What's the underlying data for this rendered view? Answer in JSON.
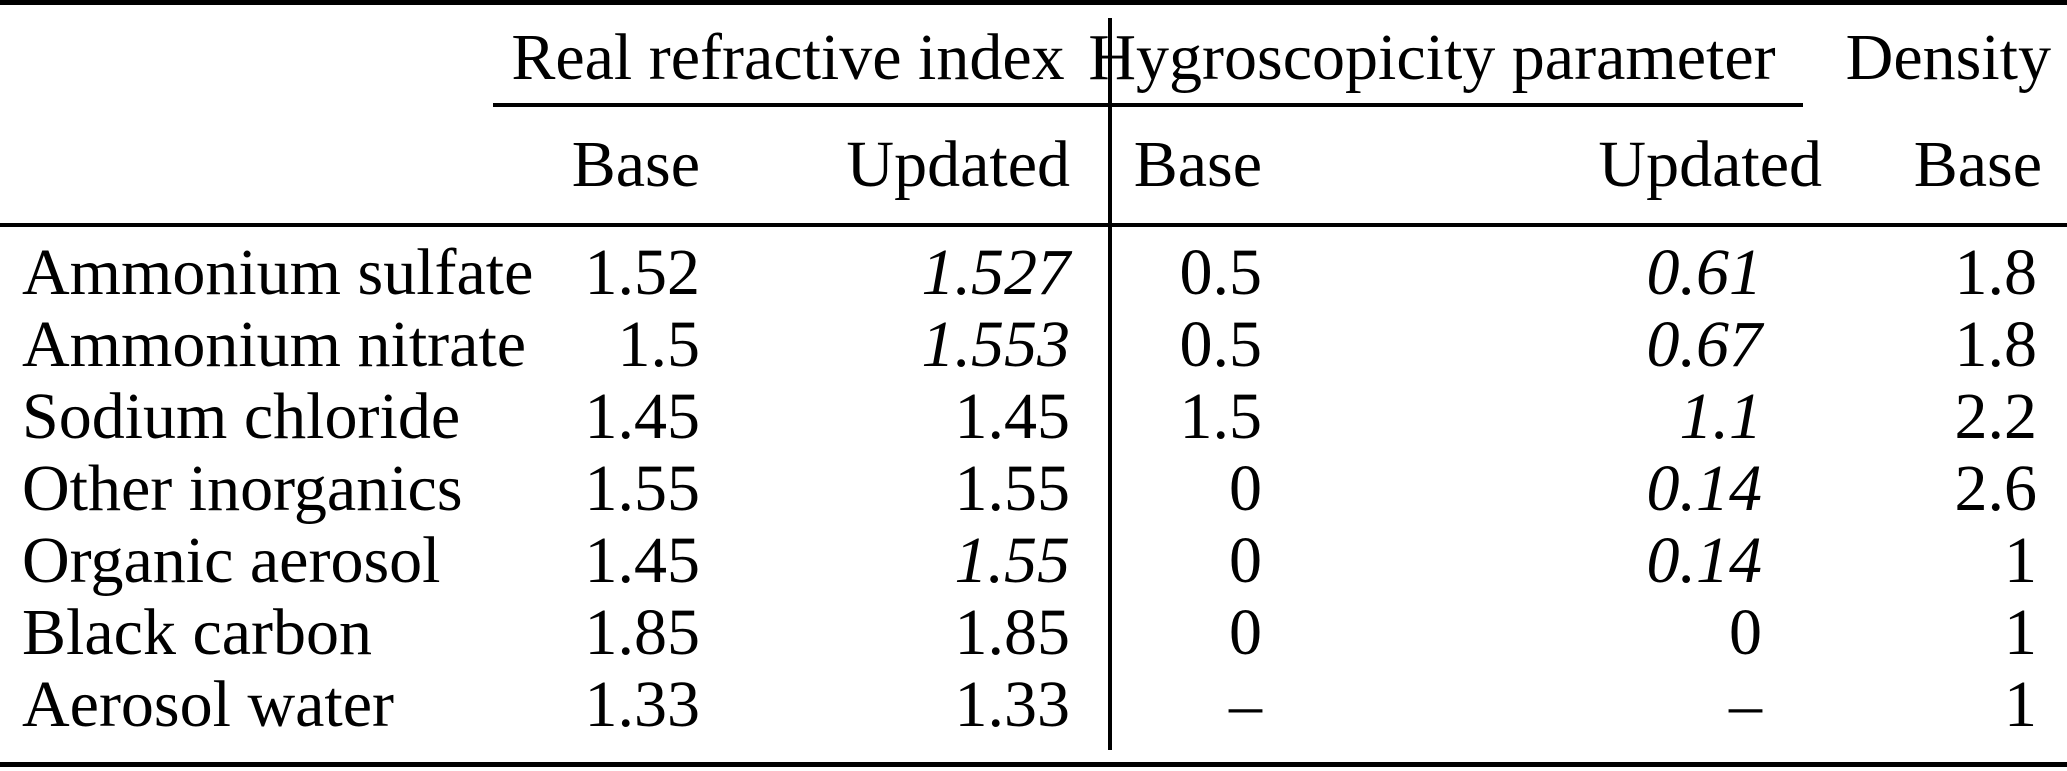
{
  "table": {
    "column_groups": {
      "refractive": "Real refractive index",
      "hygroscopicity": "Hygroscopicity parameter",
      "density": "Density"
    },
    "sub_headers": {
      "refractive_base": "Base",
      "refractive_updated": "Updated",
      "hygroscopicity_base": "Base",
      "hygroscopicity_updated": "Updated",
      "density_base": "Base"
    },
    "rows": [
      {
        "substance": "Ammonium sulfate",
        "refractive_base": "1.52",
        "refractive_updated": "1.527",
        "refractive_updated_class": "italic",
        "hygroscopicity_base": "0.5",
        "hygroscopicity_updated": "0.61",
        "hygroscopicity_updated_class": "italic",
        "density_base": "1.8"
      },
      {
        "substance": "Ammonium nitrate",
        "refractive_base": "1.5",
        "refractive_updated": "1.553",
        "refractive_updated_class": "italic",
        "hygroscopicity_base": "0.5",
        "hygroscopicity_updated": "0.67",
        "hygroscopicity_updated_class": "italic",
        "density_base": "1.8"
      },
      {
        "substance": "Sodium chloride",
        "refractive_base": "1.45",
        "refractive_updated": "1.45",
        "refractive_updated_class": "upright",
        "hygroscopicity_base": "1.5",
        "hygroscopicity_updated": "1.1",
        "hygroscopicity_updated_class": "italic",
        "density_base": "2.2"
      },
      {
        "substance": "Other inorganics",
        "refractive_base": "1.55",
        "refractive_updated": "1.55",
        "refractive_updated_class": "upright",
        "hygroscopicity_base": "0",
        "hygroscopicity_updated": "0.14",
        "hygroscopicity_updated_class": "italic",
        "density_base": "2.6"
      },
      {
        "substance": "Organic aerosol",
        "refractive_base": "1.45",
        "refractive_updated": "1.55",
        "refractive_updated_class": "italic",
        "hygroscopicity_base": "0",
        "hygroscopicity_updated": "0.14",
        "hygroscopicity_updated_class": "italic",
        "density_base": "1"
      },
      {
        "substance": "Black carbon",
        "refractive_base": "1.85",
        "refractive_updated": "1.85",
        "refractive_updated_class": "upright",
        "hygroscopicity_base": "0",
        "hygroscopicity_updated": "0",
        "hygroscopicity_updated_class": "upright",
        "density_base": "1"
      },
      {
        "substance": "Aerosol water",
        "refractive_base": "1.33",
        "refractive_updated": "1.33",
        "refractive_updated_class": "upright",
        "hygroscopicity_base": "–",
        "hygroscopicity_updated": "–",
        "hygroscopicity_updated_class": "upright",
        "density_base": "1"
      }
    ]
  }
}
